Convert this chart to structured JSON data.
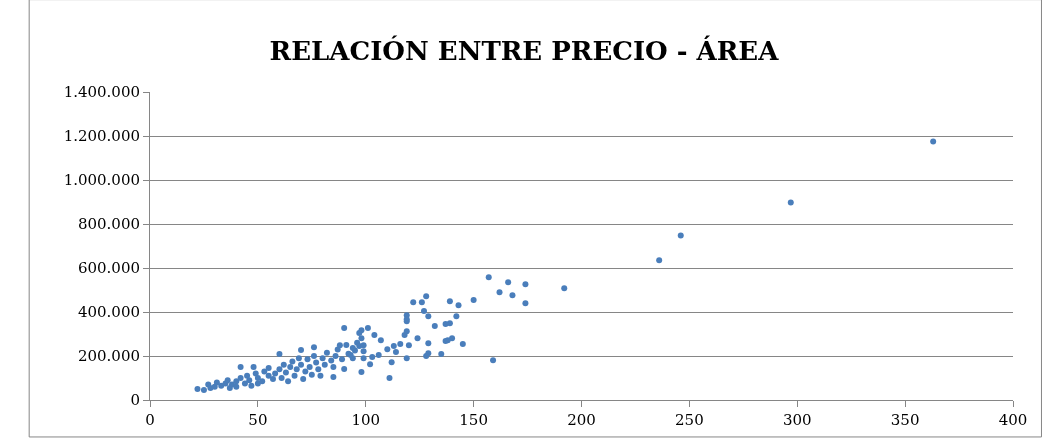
{
  "chart_data": {
    "type": "scatter",
    "title": "RELACIÓN ENTRE PRECIO - ÁREA",
    "grid": "y",
    "legend": false,
    "xlim": [
      0,
      400
    ],
    "xticks": [
      0,
      50,
      100,
      150,
      200,
      250,
      300,
      350,
      400
    ],
    "ylim": [
      0,
      1400000
    ],
    "yticks": [
      {
        "value": 0,
        "label": "0"
      },
      {
        "value": 200000,
        "label": "200.000"
      },
      {
        "value": 400000,
        "label": "400.000"
      },
      {
        "value": 600000,
        "label": "600.000"
      },
      {
        "value": 800000,
        "label": "800.000"
      },
      {
        "value": 1000000,
        "label": "1.000.000"
      },
      {
        "value": 1200000,
        "label": "1.200.000"
      },
      {
        "value": 1400000,
        "label": "1.400.000"
      }
    ],
    "series": [
      {
        "color": "#4a7ebb",
        "x": [
          22,
          25,
          27,
          28,
          30,
          31,
          33,
          35,
          36,
          37,
          38,
          40,
          40,
          42,
          42,
          44,
          45,
          46,
          47,
          48,
          49,
          50,
          50,
          52,
          53,
          55,
          55,
          57,
          58,
          60,
          60,
          61,
          62,
          63,
          64,
          65,
          66,
          67,
          68,
          69,
          70,
          70,
          71,
          72,
          73,
          74,
          75,
          76,
          77,
          78,
          79,
          80,
          81,
          82,
          84,
          85,
          86,
          87,
          89,
          91,
          92,
          94,
          95,
          96,
          97,
          157,
          166,
          174,
          162,
          168,
          174,
          150,
          139,
          143,
          128,
          126,
          122,
          127,
          129,
          119,
          119,
          119,
          132,
          142,
          139,
          137,
          119,
          118,
          124,
          140,
          138,
          137,
          145,
          129,
          116,
          113,
          120,
          110,
          114,
          129,
          128,
          135,
          119,
          159,
          112,
          111,
          106,
          107,
          104,
          101,
          98,
          97,
          98,
          99,
          99,
          99,
          103,
          102,
          98,
          90,
          90,
          85,
          76,
          88,
          93,
          94,
          363,
          297,
          246,
          236,
          192
        ],
        "values": [
          50000,
          45000,
          70000,
          55000,
          60000,
          80000,
          65000,
          75000,
          90000,
          55000,
          70000,
          85000,
          60000,
          100000,
          150000,
          75000,
          110000,
          90000,
          65000,
          150000,
          120000,
          100000,
          75000,
          85000,
          130000,
          110000,
          145000,
          95000,
          120000,
          140000,
          209000,
          100000,
          160000,
          125000,
          85000,
          150000,
          175000,
          110000,
          140000,
          190000,
          227000,
          160000,
          95000,
          130000,
          185000,
          150000,
          115000,
          200000,
          170000,
          140000,
          110000,
          190000,
          160000,
          215000,
          180000,
          150000,
          200000,
          230000,
          185000,
          250000,
          210000,
          190000,
          225000,
          260000,
          245000,
          558000,
          535000,
          526000,
          490000,
          476000,
          440000,
          454000,
          449000,
          431000,
          472000,
          444000,
          444000,
          404000,
          381000,
          385000,
          367000,
          358000,
          336000,
          381000,
          349000,
          345000,
          313000,
          295000,
          281000,
          281000,
          272000,
          268000,
          254000,
          258000,
          254000,
          245000,
          249000,
          231000,
          218000,
          213000,
          200000,
          209000,
          190000,
          181000,
          172000,
          100000,
          204000,
          272000,
          295000,
          327000,
          317000,
          304000,
          281000,
          249000,
          222000,
          190000,
          195000,
          163000,
          127000,
          327000,
          141000,
          104000,
          240000,
          249000,
          204000,
          236000,
          1175000,
          898000,
          748000,
          635000,
          508000
        ]
      }
    ]
  }
}
